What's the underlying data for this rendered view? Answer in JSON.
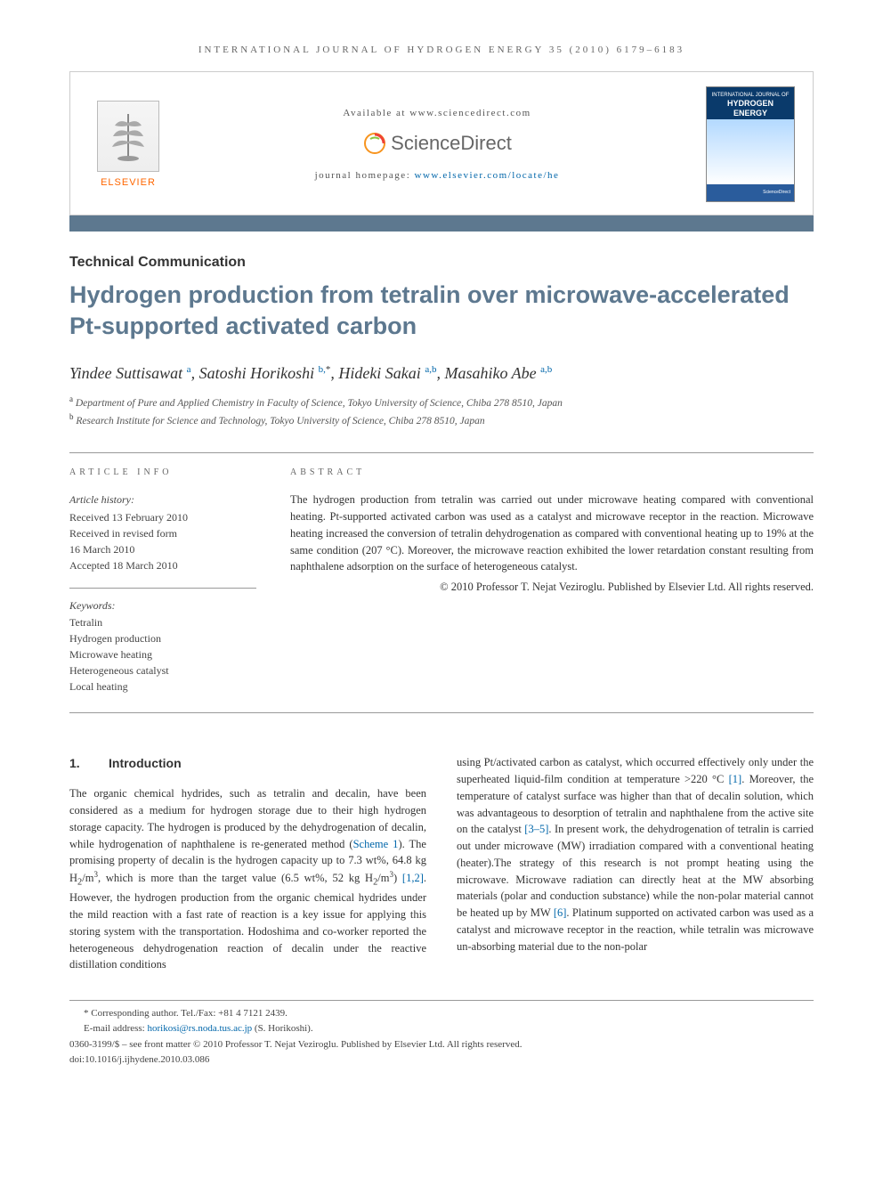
{
  "running_head": "INTERNATIONAL JOURNAL OF HYDROGEN ENERGY 35 (2010) 6179–6183",
  "header": {
    "elsevier": "ELSEVIER",
    "available": "Available at www.sciencedirect.com",
    "sd_logo": "ScienceDirect",
    "journal_home_label": "journal homepage: ",
    "journal_home_url": "www.elsevier.com/locate/he",
    "cover_top1": "INTERNATIONAL JOURNAL OF",
    "cover_top2": "HYDROGEN",
    "cover_top3": "ENERGY",
    "cover_bot": "ScienceDirect"
  },
  "article_type": "Technical Communication",
  "title": "Hydrogen production from tetralin over microwave-accelerated Pt-supported activated carbon",
  "authors_html": "Yindee Suttisawat <sup>a</sup>, Satoshi Horikoshi <sup>b,</sup><sup class=\"star\">*</sup>, Hideki Sakai <sup>a,b</sup>, Masahiko Abe <sup>a,b</sup>",
  "affils": {
    "a": "Department of Pure and Applied Chemistry in Faculty of Science, Tokyo University of Science, Chiba 278 8510, Japan",
    "b": "Research Institute for Science and Technology, Tokyo University of Science, Chiba 278 8510, Japan"
  },
  "article_info": {
    "head": "ARTICLE INFO",
    "history_label": "Article history:",
    "received": "Received 13 February 2010",
    "revised1": "Received in revised form",
    "revised2": "16 March 2010",
    "accepted": "Accepted 18 March 2010",
    "kw_label": "Keywords:",
    "keywords": [
      "Tetralin",
      "Hydrogen production",
      "Microwave heating",
      "Heterogeneous catalyst",
      "Local heating"
    ]
  },
  "abstract": {
    "head": "ABSTRACT",
    "text": "The hydrogen production from tetralin was carried out under microwave heating compared with conventional heating. Pt-supported activated carbon was used as a catalyst and microwave receptor in the reaction. Microwave heating increased the conversion of tetralin dehydrogenation as compared with conventional heating up to 19% at the same condition (207 °C). Moreover, the microwave reaction exhibited the lower retardation constant resulting from naphthalene adsorption on the surface of heterogeneous catalyst.",
    "copyright": "© 2010 Professor T. Nejat Veziroglu. Published by Elsevier Ltd. All rights reserved."
  },
  "section1": {
    "num": "1.",
    "title": "Introduction",
    "col1_html": "The organic chemical hydrides, such as tetralin and decalin, have been considered as a medium for hydrogen storage due to their high hydrogen storage capacity. The hydrogen is produced by the dehydrogenation of decalin, while hydrogenation of naphthalene is re-generated method (<span class=\"ref-link\">Scheme 1</span>). The promising property of decalin is the hydrogen capacity up to 7.3 wt%, 64.8 kg H<sub>2</sub>/m<sup class=\"small\">3</sup>, which is more than the target value (6.5 wt%, 52 kg H<sub>2</sub>/m<sup class=\"small\">3</sup>) <span class=\"ref-link\">[1,2]</span>. However, the hydrogen production from the organic chemical hydrides under the mild reaction with a fast rate of reaction is a key issue for applying this storing system with the transportation. Hodoshima and co-worker reported the heterogeneous dehydrogenation reaction of decalin under the reactive distillation conditions",
    "col2_html": "using Pt/activated carbon as catalyst, which occurred effectively only under the superheated liquid-film condition at temperature &gt;220 °C <span class=\"ref-link\">[1]</span>. Moreover, the temperature of catalyst surface was higher than that of decalin solution, which was advantageous to desorption of tetralin and naphthalene from the active site on the catalyst <span class=\"ref-link\">[3–5]</span>. In present work, the dehydrogenation of tetralin is carried out under microwave (MW) irradiation compared with a conventional heating (heater).The strategy of this research is not prompt heating using the microwave. Microwave radiation can directly heat at the MW absorbing materials (polar and conduction substance) while the non-polar material cannot be heated up by MW <span class=\"ref-link\">[6]</span>. Platinum supported on activated carbon was used as a catalyst and microwave receptor in the reaction, while tetralin was microwave un-absorbing material due to the non-polar"
  },
  "footnotes": {
    "corr": "* Corresponding author. Tel./Fax: +81 4 7121 2439.",
    "email_label": "E-mail address: ",
    "email": "horikosi@rs.noda.tus.ac.jp",
    "email_who": " (S. Horikoshi).",
    "copyright": "0360-3199/$ – see front matter © 2010 Professor T. Nejat Veziroglu. Published by Elsevier Ltd. All rights reserved.",
    "doi": "doi:10.1016/j.ijhydene.2010.03.086"
  },
  "colors": {
    "accent": "#5d788f",
    "orange": "#ff6600",
    "link": "#0066aa"
  }
}
